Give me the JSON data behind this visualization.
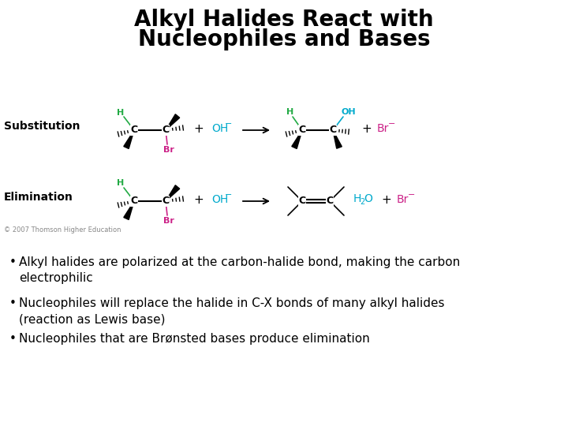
{
  "title_line1": "Alkyl Halides React with",
  "title_line2": "Nucleophiles and Bases",
  "title_fontsize": 20,
  "title_fontweight": "bold",
  "bg_color": "#ffffff",
  "bullet_points": [
    "Alkyl halides are polarized at the carbon-halide bond, making the carbon\nelectrophilic",
    "Nucleophiles will replace the halide in C-X bonds of many alkyl halides\n(reaction as Lewis base)",
    "Nucleophiles that are Brønsted bases produce elimination"
  ],
  "bullet_fontsize": 11,
  "label_substitution": "Substitution",
  "label_elimination": "Elimination",
  "color_green": "#22AA44",
  "color_teal": "#00AACC",
  "color_magenta": "#CC2288",
  "color_black": "#000000",
  "color_gray": "#888888",
  "copyright_text": "© 2007 Thomson Higher Education"
}
